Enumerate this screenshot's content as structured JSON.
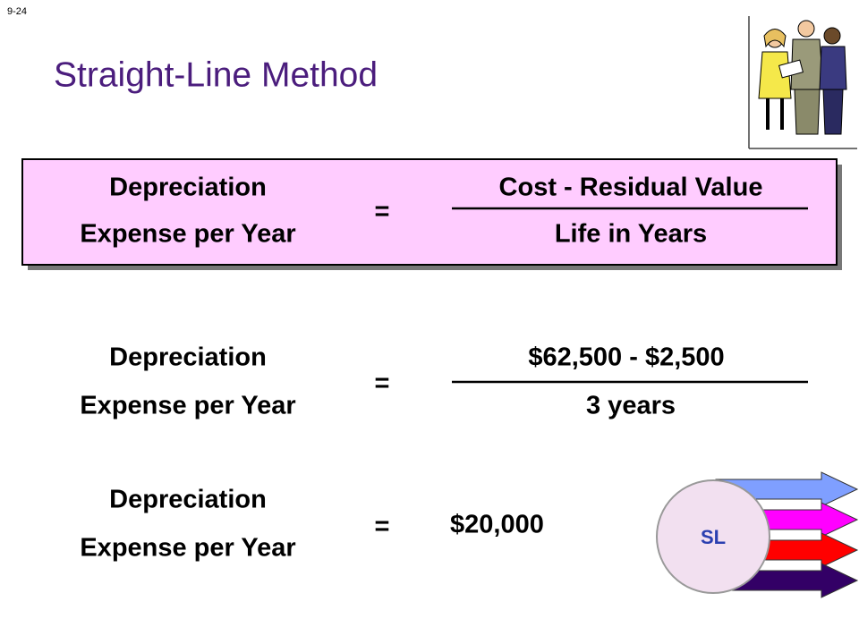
{
  "slide_number": "9-24",
  "title": "Straight-Line Method",
  "formulas": [
    {
      "left_top": "Depreciation",
      "left_bottom": "Expense per Year",
      "equals": "=",
      "numerator": "Cost  -  Residual Value",
      "denominator": "Life in Years"
    },
    {
      "left_top": "Depreciation",
      "left_bottom": "Expense per Year",
      "equals": "=",
      "numerator": "$62,500 - $2,500",
      "denominator": "3 years"
    },
    {
      "left_top": "Depreciation",
      "left_bottom": "Expense per Year",
      "equals": "=",
      "result": "$20,000"
    }
  ],
  "logo": {
    "label": "SL"
  }
}
